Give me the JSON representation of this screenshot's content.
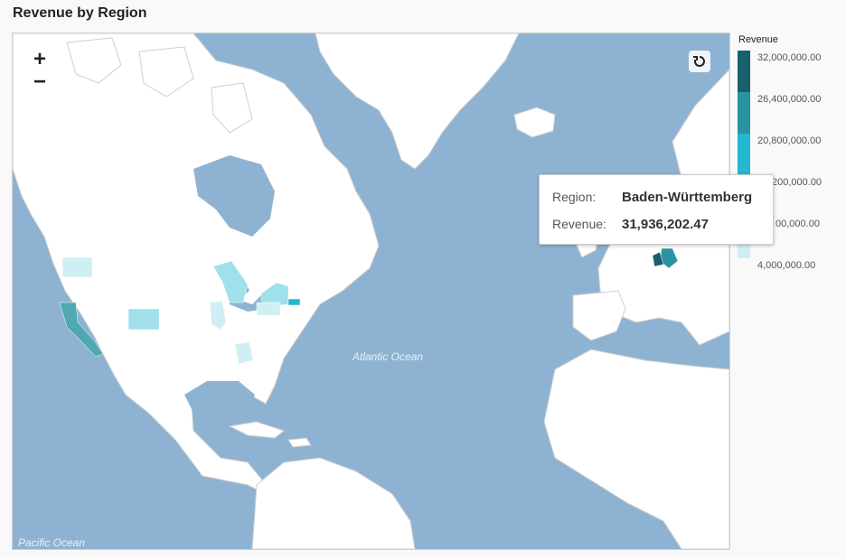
{
  "title": "Revenue by Region",
  "map": {
    "ocean_labels": [
      "Atlantic Ocean",
      "Pacific Ocean"
    ],
    "colors": {
      "ocean": "#8eb3d2",
      "land": "#ffffff",
      "border": "#cfcfcf",
      "scale": [
        "#cfeff4",
        "#9fe0ea",
        "#72cfdd",
        "#22b8d1",
        "#2a93a3",
        "#17606c"
      ]
    },
    "regions": [
      {
        "name": "Baden-Württemberg",
        "revenue": 31936202.47,
        "color": "#17606c"
      },
      {
        "name": "Bavaria",
        "revenue": null,
        "color": "#2a93a3"
      },
      {
        "name": "California",
        "revenue": null,
        "color": "#4fa9b2"
      },
      {
        "name": "Washington",
        "revenue": null,
        "color": "#cfeff4"
      },
      {
        "name": "Michigan",
        "revenue": null,
        "color": "#9fe0ea"
      },
      {
        "name": "Colorado",
        "revenue": null,
        "color": "#9fe0ea"
      },
      {
        "name": "Illinois",
        "revenue": null,
        "color": "#cfeff4"
      },
      {
        "name": "New York",
        "revenue": null,
        "color": "#9fe0ea"
      },
      {
        "name": "Pennsylvania",
        "revenue": null,
        "color": "#cfeff4"
      },
      {
        "name": "Georgia",
        "revenue": null,
        "color": "#cfeff4"
      },
      {
        "name": "Massachusetts",
        "revenue": null,
        "color": "#22b8d1"
      }
    ]
  },
  "controls": {
    "zoom_in": "+",
    "zoom_out": "−",
    "reset_icon": "reset-view-icon"
  },
  "legend": {
    "title": "Revenue",
    "labels": [
      "32,000,000.00",
      "26,400,000.00",
      "20,800,000.00",
      "200,000.00",
      "00,000.00",
      "4,000,000.00"
    ],
    "colors": [
      "#17606c",
      "#2a93a3",
      "#22b8d1",
      "#72cfdd",
      "#9fe0ea",
      "#cfeff4"
    ]
  },
  "tooltip": {
    "region_label": "Region:",
    "region_value": "Baden-Württemberg",
    "revenue_label": "Revenue:",
    "revenue_value": "31,936,202.47"
  }
}
